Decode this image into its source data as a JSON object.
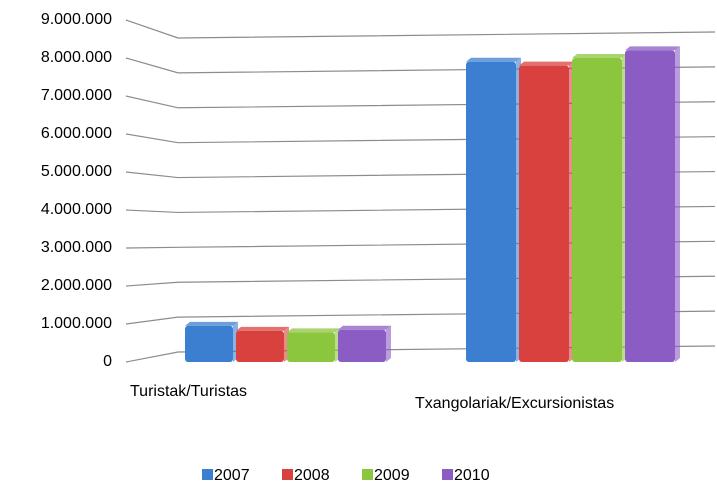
{
  "chart_data": {
    "type": "bar",
    "categories": [
      "Turistak/Turistas",
      "Txangolariak/Excursionistas"
    ],
    "series": [
      {
        "name": "2007",
        "color": "#3c7fd1",
        "values": [
          950000,
          7900000
        ]
      },
      {
        "name": "2008",
        "color": "#d9413e",
        "values": [
          820000,
          7800000
        ]
      },
      {
        "name": "2009",
        "color": "#8cc63f",
        "values": [
          780000,
          8000000
        ]
      },
      {
        "name": "2010",
        "color": "#8b5cc4",
        "values": [
          850000,
          8200000
        ]
      }
    ],
    "ylim": [
      0,
      9000000
    ],
    "yticks": [
      0,
      {
        "value": 1000000,
        "label": "1.000.000"
      },
      {
        "value": 2000000,
        "label": "2.000.000"
      },
      {
        "value": 3000000,
        "label": "3.000.000"
      },
      {
        "value": 4000000,
        "label": "4.000.000"
      },
      {
        "value": 5000000,
        "label": "5.000.000"
      },
      {
        "value": 6000000,
        "label": "6.000.000"
      },
      {
        "value": 7000000,
        "label": "7.000.000"
      },
      {
        "value": 8000000,
        "label": "8.000.000"
      },
      {
        "value": 9000000,
        "label": "9.000.000"
      }
    ],
    "grid": true,
    "legend": "bottom"
  }
}
